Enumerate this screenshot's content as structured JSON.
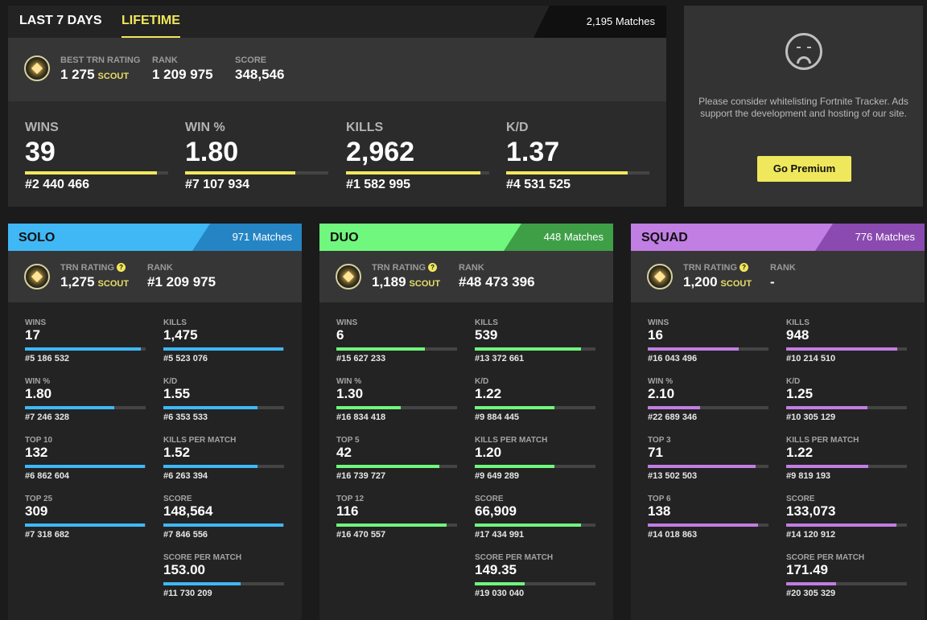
{
  "tabs": {
    "last7": "LAST 7 DAYS",
    "lifetime": "LIFETIME",
    "matches": "2,195 Matches"
  },
  "overview": {
    "best_rating_label": "BEST TRN RATING",
    "best_rating_value": "1 275",
    "best_rating_tier": "SCOUT",
    "rank_label": "RANK",
    "rank_value": "1 209 975",
    "score_label": "SCORE",
    "score_value": "348,546",
    "stats": [
      {
        "label": "WINS",
        "value": "39",
        "rank": "#2 440 466",
        "fill": 0.92
      },
      {
        "label": "WIN %",
        "value": "1.80",
        "rank": "#7 107 934",
        "fill": 0.77
      },
      {
        "label": "KILLS",
        "value": "2,962",
        "rank": "#1 582 995",
        "fill": 0.94
      },
      {
        "label": "K/D",
        "value": "1.37",
        "rank": "#4 531 525",
        "fill": 0.85
      }
    ],
    "bar_color": "#f0e85c"
  },
  "ad": {
    "text": "Please consider whitelisting Fortnite Tracker. Ads support the development and hosting of our site.",
    "button": "Go Premium"
  },
  "modes": [
    {
      "title": "SOLO",
      "matches": "971 Matches",
      "color": "#3fb8f5",
      "dark": "#2585c4",
      "rating_label": "TRN RATING",
      "rating_value": "1,275",
      "rating_tier": "SCOUT",
      "rank_label": "RANK",
      "rank_value": "#1 209 975",
      "left": [
        {
          "label": "WINS",
          "value": "17",
          "rank": "#5 186 532",
          "fill": 0.96
        },
        {
          "label": "WIN %",
          "value": "1.80",
          "rank": "#7 246 328",
          "fill": 0.74
        },
        {
          "label": "TOP 10",
          "value": "132",
          "rank": "#6 862 604",
          "fill": 0.99
        },
        {
          "label": "TOP 25",
          "value": "309",
          "rank": "#7 318 682",
          "fill": 0.99
        }
      ],
      "right": [
        {
          "label": "KILLS",
          "value": "1,475",
          "rank": "#5 523 076",
          "fill": 0.99
        },
        {
          "label": "K/D",
          "value": "1.55",
          "rank": "#6 353 533",
          "fill": 0.78
        },
        {
          "label": "KILLS PER MATCH",
          "value": "1.52",
          "rank": "#6 263 394",
          "fill": 0.78
        },
        {
          "label": "SCORE",
          "value": "148,564",
          "rank": "#7 846 556",
          "fill": 0.99
        },
        {
          "label": "SCORE PER MATCH",
          "value": "153.00",
          "rank": "#11 730 209",
          "fill": 0.64
        }
      ]
    },
    {
      "title": "DUO",
      "matches": "448 Matches",
      "color": "#70f77d",
      "dark": "#3f9f47",
      "rating_label": "TRN RATING",
      "rating_value": "1,189",
      "rating_tier": "SCOUT",
      "rank_label": "RANK",
      "rank_value": "#48 473 396",
      "left": [
        {
          "label": "WINS",
          "value": "6",
          "rank": "#15 627 233",
          "fill": 0.73
        },
        {
          "label": "WIN %",
          "value": "1.30",
          "rank": "#16 834 418",
          "fill": 0.53
        },
        {
          "label": "TOP 5",
          "value": "42",
          "rank": "#16 739 727",
          "fill": 0.85
        },
        {
          "label": "TOP 12",
          "value": "116",
          "rank": "#16 470 557",
          "fill": 0.91
        }
      ],
      "right": [
        {
          "label": "KILLS",
          "value": "539",
          "rank": "#13 372 661",
          "fill": 0.88
        },
        {
          "label": "K/D",
          "value": "1.22",
          "rank": "#9 884 445",
          "fill": 0.66
        },
        {
          "label": "KILLS PER MATCH",
          "value": "1.20",
          "rank": "#9 649 289",
          "fill": 0.66
        },
        {
          "label": "SCORE",
          "value": "66,909",
          "rank": "#17 434 991",
          "fill": 0.88
        },
        {
          "label": "SCORE PER MATCH",
          "value": "149.35",
          "rank": "#19 030 040",
          "fill": 0.41
        }
      ]
    },
    {
      "title": "SQUAD",
      "matches": "776 Matches",
      "color": "#c17ee3",
      "dark": "#8a4ab0",
      "rating_label": "TRN RATING",
      "rating_value": "1,200",
      "rating_tier": "SCOUT",
      "rank_label": "RANK",
      "rank_value": "-",
      "left": [
        {
          "label": "WINS",
          "value": "16",
          "rank": "#16 043 496",
          "fill": 0.75
        },
        {
          "label": "WIN %",
          "value": "2.10",
          "rank": "#22 689 346",
          "fill": 0.43
        },
        {
          "label": "TOP 3",
          "value": "71",
          "rank": "#13 502 503",
          "fill": 0.89
        },
        {
          "label": "TOP 6",
          "value": "138",
          "rank": "#14 018 863",
          "fill": 0.91
        }
      ],
      "right": [
        {
          "label": "KILLS",
          "value": "948",
          "rank": "#10 214 510",
          "fill": 0.92
        },
        {
          "label": "K/D",
          "value": "1.25",
          "rank": "#10 305 129",
          "fill": 0.67
        },
        {
          "label": "KILLS PER MATCH",
          "value": "1.22",
          "rank": "#9 819 193",
          "fill": 0.68
        },
        {
          "label": "SCORE",
          "value": "133,073",
          "rank": "#14 120 912",
          "fill": 0.91
        },
        {
          "label": "SCORE PER MATCH",
          "value": "171.49",
          "rank": "#20 305 329",
          "fill": 0.41
        }
      ]
    }
  ]
}
